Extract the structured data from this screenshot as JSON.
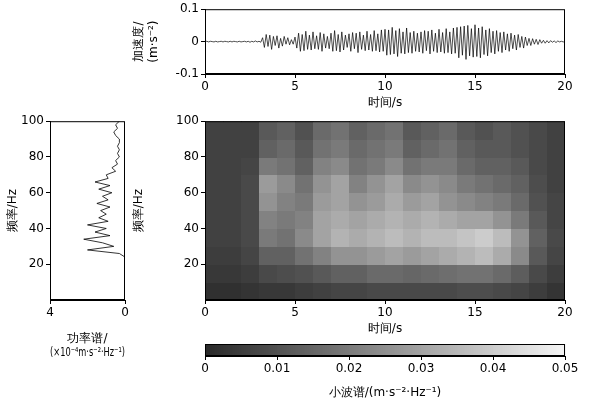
{
  "chart_data": [
    {
      "type": "line",
      "xlabel": "时间/s",
      "ylabel": "加速度/(m·s⁻²)",
      "color": "#000000",
      "xlim": [
        0,
        20
      ],
      "xticks": [
        0,
        5,
        10,
        15,
        20
      ],
      "ylim": [
        -0.1,
        0.1
      ],
      "yticks": [
        -0.1,
        0,
        0.1
      ],
      "x": [
        0,
        0.1,
        0.2,
        0.3,
        0.4,
        0.5,
        0.6,
        0.7,
        0.8,
        0.9,
        1,
        1.1,
        1.2,
        1.3,
        1.4,
        1.5,
        1.6,
        1.7,
        1.8,
        1.9,
        2,
        2.1,
        2.2,
        2.3,
        2.4,
        2.5,
        2.6,
        2.7,
        2.8,
        2.9,
        3,
        3.1,
        3.2,
        3.3,
        3.4,
        3.5,
        3.6,
        3.7,
        3.8,
        3.9,
        4,
        4.1,
        4.2,
        4.3,
        4.4,
        4.5,
        4.6,
        4.7,
        4.8,
        4.9,
        5,
        5.1,
        5.2,
        5.3,
        5.4,
        5.5,
        5.6,
        5.7,
        5.8,
        5.9,
        6,
        6.1,
        6.2,
        6.3,
        6.4,
        6.5,
        6.6,
        6.7,
        6.8,
        6.9,
        7,
        7.1,
        7.2,
        7.3,
        7.4,
        7.5,
        7.6,
        7.7,
        7.8,
        7.9,
        8,
        8.1,
        8.2,
        8.3,
        8.4,
        8.5,
        8.6,
        8.7,
        8.8,
        8.9,
        9,
        9.1,
        9.2,
        9.3,
        9.4,
        9.5,
        9.6,
        9.7,
        9.8,
        9.9,
        10,
        10.1,
        10.2,
        10.3,
        10.4,
        10.5,
        10.6,
        10.7,
        10.8,
        10.9,
        11,
        11.1,
        11.2,
        11.3,
        11.4,
        11.5,
        11.6,
        11.7,
        11.8,
        11.9,
        12,
        12.1,
        12.2,
        12.3,
        12.4,
        12.5,
        12.6,
        12.7,
        12.8,
        12.9,
        13,
        13.1,
        13.2,
        13.3,
        13.4,
        13.5,
        13.6,
        13.7,
        13.8,
        13.9,
        14,
        14.1,
        14.2,
        14.3,
        14.4,
        14.5,
        14.6,
        14.7,
        14.8,
        14.9,
        15,
        15.1,
        15.2,
        15.3,
        15.4,
        15.5,
        15.6,
        15.7,
        15.8,
        15.9,
        16,
        16.1,
        16.2,
        16.3,
        16.4,
        16.5,
        16.6,
        16.7,
        16.8,
        16.9,
        17,
        17.1,
        17.2,
        17.3,
        17.4,
        17.5,
        17.6,
        17.7,
        17.8,
        17.9,
        18,
        18.1,
        18.2,
        18.3,
        18.4,
        18.5,
        18.6,
        18.7,
        18.8,
        18.9,
        19,
        19.1,
        19.2,
        19.3,
        19.4,
        19.5,
        19.6,
        19.7,
        19.8,
        19.9,
        20
      ],
      "values": [
        0,
        0.001,
        -0.001,
        0.001,
        0,
        -0.001,
        0.001,
        -0.001,
        0,
        0.001,
        -0.001,
        0.001,
        0,
        -0.001,
        0.001,
        -0.001,
        0.001,
        0,
        -0.001,
        0.001,
        -0.001,
        0,
        0.001,
        -0.001,
        0.001,
        -0.002,
        0.001,
        -0.001,
        0.002,
        -0.001,
        0.001,
        -0.002,
        0.012,
        -0.018,
        0.022,
        -0.015,
        0.02,
        -0.024,
        0.016,
        -0.012,
        0.018,
        -0.02,
        0.01,
        -0.014,
        0.016,
        -0.008,
        0.012,
        -0.01,
        0.006,
        -0.008,
        0.014,
        -0.02,
        0.026,
        -0.03,
        0.022,
        -0.028,
        0.032,
        -0.024,
        0.02,
        -0.026,
        0.03,
        -0.022,
        0.018,
        -0.024,
        0.028,
        -0.03,
        0.024,
        -0.02,
        0.016,
        -0.022,
        0.026,
        -0.03,
        0.034,
        -0.028,
        0.022,
        -0.032,
        0.03,
        -0.026,
        0.02,
        -0.018,
        0.024,
        -0.03,
        0.028,
        -0.022,
        0.026,
        -0.034,
        0.03,
        -0.024,
        0.02,
        -0.028,
        0.032,
        -0.026,
        0.022,
        -0.03,
        0.034,
        -0.028,
        0.024,
        -0.032,
        0.036,
        -0.03,
        0.038,
        -0.042,
        0.036,
        -0.04,
        0.044,
        -0.038,
        0.034,
        -0.046,
        0.04,
        -0.036,
        0.03,
        -0.038,
        0.042,
        -0.034,
        0.028,
        -0.036,
        0.032,
        -0.03,
        0.026,
        -0.032,
        0.03,
        -0.036,
        0.034,
        -0.028,
        0.032,
        -0.038,
        0.036,
        -0.03,
        0.026,
        -0.034,
        0.038,
        -0.032,
        0.028,
        -0.036,
        0.04,
        -0.034,
        0.03,
        -0.038,
        0.042,
        -0.036,
        0.044,
        -0.05,
        0.046,
        -0.042,
        0.048,
        -0.055,
        0.05,
        -0.044,
        0.04,
        -0.048,
        0.052,
        -0.046,
        0.042,
        -0.05,
        0.046,
        -0.04,
        0.036,
        -0.044,
        0.04,
        -0.034,
        0.032,
        -0.038,
        0.034,
        -0.03,
        0.028,
        -0.034,
        0.03,
        -0.026,
        0.024,
        -0.03,
        0.026,
        -0.022,
        0.02,
        -0.026,
        0.022,
        -0.018,
        0.016,
        -0.02,
        0.014,
        -0.012,
        0.01,
        -0.012,
        0.009,
        -0.008,
        0.007,
        -0.009,
        0.006,
        -0.005,
        0.004,
        -0.005,
        0.003,
        -0.004,
        0.003,
        -0.002,
        0.002,
        -0.003,
        0.002,
        -0.001,
        0.001,
        -0.001,
        0
      ]
    },
    {
      "type": "line",
      "xlabel": "功率谱/(×10⁻⁴m·s⁻²·Hz⁻¹)",
      "ylabel": "频率/Hz",
      "color": "#000000",
      "xlim": [
        4,
        0
      ],
      "xticks": [
        4,
        0
      ],
      "ylim": [
        0,
        100
      ],
      "yticks": [
        20,
        40,
        60,
        80,
        100
      ],
      "y": [
        0,
        2,
        4,
        6,
        8,
        10,
        12,
        14,
        16,
        18,
        20,
        22,
        24,
        26,
        28,
        30,
        32,
        34,
        36,
        38,
        40,
        42,
        44,
        46,
        48,
        50,
        52,
        54,
        56,
        58,
        60,
        62,
        64,
        66,
        68,
        70,
        72,
        74,
        76,
        78,
        80,
        82,
        84,
        86,
        88,
        90,
        92,
        94,
        96,
        98,
        100
      ],
      "values": [
        0,
        0,
        0,
        0,
        0,
        0,
        0,
        0,
        0,
        0,
        0,
        0,
        0,
        0.3,
        2.0,
        0.6,
        1.2,
        2.2,
        0.8,
        1.6,
        1.0,
        2.0,
        0.9,
        1.4,
        1.0,
        1.3,
        0.8,
        1.5,
        0.9,
        1.2,
        0.7,
        1.4,
        0.8,
        1.6,
        0.9,
        1.0,
        0.5,
        0.7,
        0.4,
        0.5,
        0.3,
        0.4,
        0.3,
        0.4,
        0.3,
        0.3,
        0.5,
        0.6,
        0.4,
        0.5,
        0.3
      ]
    },
    {
      "type": "heatmap",
      "xlabel": "时间/s",
      "ylabel": "频率/Hz",
      "xlim": [
        0,
        20
      ],
      "xticks": [
        0,
        5,
        10,
        15,
        20
      ],
      "ylim": [
        0,
        100
      ],
      "yticks": [
        20,
        40,
        60,
        80,
        100
      ],
      "x": [
        0.5,
        1.5,
        2.5,
        3.5,
        4.5,
        5.5,
        6.5,
        7.5,
        8.5,
        9.5,
        10.5,
        11.5,
        12.5,
        13.5,
        14.5,
        15.5,
        16.5,
        17.5,
        18.5,
        19.5
      ],
      "y": [
        5,
        15,
        25,
        35,
        45,
        55,
        65,
        75,
        85,
        95
      ],
      "cells": [
        [
          0.002,
          0.002,
          0.003,
          0.004,
          0.004,
          0.005,
          0.006,
          0.007,
          0.007,
          0.008,
          0.008,
          0.008,
          0.008,
          0.008,
          0.009,
          0.009,
          0.008,
          0.007,
          0.005,
          0.003
        ],
        [
          0.004,
          0.004,
          0.005,
          0.008,
          0.009,
          0.01,
          0.012,
          0.014,
          0.014,
          0.016,
          0.016,
          0.015,
          0.016,
          0.017,
          0.018,
          0.018,
          0.016,
          0.013,
          0.008,
          0.005
        ],
        [
          0.005,
          0.005,
          0.007,
          0.014,
          0.014,
          0.018,
          0.022,
          0.026,
          0.026,
          0.028,
          0.03,
          0.028,
          0.03,
          0.032,
          0.034,
          0.036,
          0.032,
          0.024,
          0.012,
          0.007
        ],
        [
          0.006,
          0.006,
          0.008,
          0.02,
          0.018,
          0.024,
          0.03,
          0.034,
          0.032,
          0.034,
          0.036,
          0.034,
          0.036,
          0.036,
          0.038,
          0.04,
          0.036,
          0.026,
          0.014,
          0.008
        ],
        [
          0.006,
          0.006,
          0.008,
          0.022,
          0.02,
          0.022,
          0.03,
          0.032,
          0.03,
          0.032,
          0.034,
          0.032,
          0.034,
          0.032,
          0.03,
          0.03,
          0.026,
          0.02,
          0.012,
          0.007
        ],
        [
          0.006,
          0.006,
          0.008,
          0.026,
          0.022,
          0.02,
          0.028,
          0.03,
          0.026,
          0.028,
          0.032,
          0.028,
          0.03,
          0.026,
          0.024,
          0.022,
          0.02,
          0.016,
          0.01,
          0.007
        ],
        [
          0.006,
          0.006,
          0.008,
          0.028,
          0.024,
          0.018,
          0.026,
          0.03,
          0.022,
          0.026,
          0.03,
          0.024,
          0.026,
          0.024,
          0.02,
          0.018,
          0.016,
          0.014,
          0.009,
          0.006
        ],
        [
          0.006,
          0.006,
          0.007,
          0.02,
          0.018,
          0.014,
          0.022,
          0.024,
          0.018,
          0.02,
          0.024,
          0.018,
          0.02,
          0.02,
          0.016,
          0.014,
          0.014,
          0.012,
          0.008,
          0.006
        ],
        [
          0.006,
          0.006,
          0.006,
          0.014,
          0.016,
          0.012,
          0.018,
          0.02,
          0.016,
          0.018,
          0.02,
          0.014,
          0.016,
          0.018,
          0.014,
          0.012,
          0.012,
          0.01,
          0.008,
          0.006
        ],
        [
          0.006,
          0.006,
          0.006,
          0.012,
          0.014,
          0.01,
          0.016,
          0.018,
          0.014,
          0.016,
          0.018,
          0.012,
          0.014,
          0.016,
          0.012,
          0.01,
          0.012,
          0.01,
          0.008,
          0.006
        ]
      ],
      "colorbar": {
        "range": [
          0,
          0.05
        ],
        "ticks": [
          0,
          0.01,
          0.02,
          0.03,
          0.04,
          0.05
        ],
        "label": "小波谱/(m·s⁻²·Hz⁻¹)"
      }
    }
  ]
}
